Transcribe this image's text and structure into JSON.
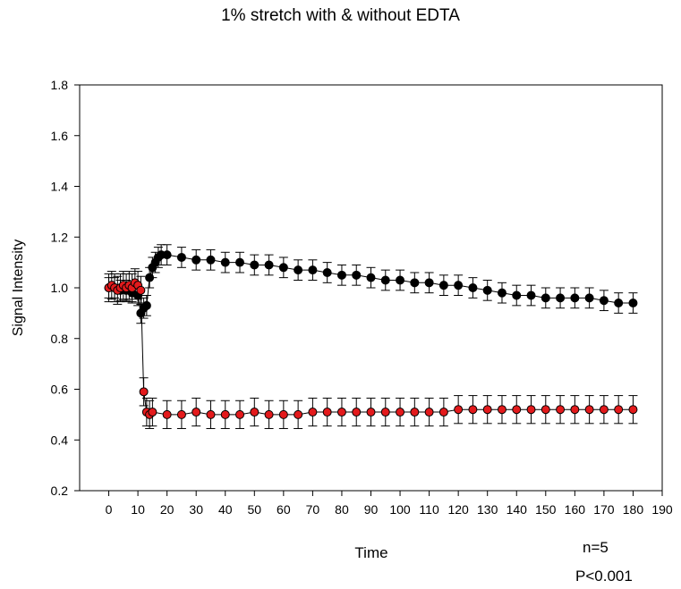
{
  "chart_data": {
    "type": "scatter",
    "title": "1% stretch with & without EDTA",
    "xlabel": "Time",
    "ylabel": "Signal Intensity",
    "xlim": [
      -10,
      190
    ],
    "ylim": [
      0.2,
      1.8
    ],
    "xticks": [
      "0",
      "10",
      "20",
      "30",
      "40",
      "50",
      "60",
      "70",
      "80",
      "90",
      "100",
      "110",
      "120",
      "130",
      "140",
      "150",
      "160",
      "170",
      "180",
      "190"
    ],
    "yticks": [
      "0.2",
      "0.4",
      "0.6",
      "0.8",
      "1.0",
      "1.2",
      "1.4",
      "1.6",
      "1.8"
    ],
    "grid": false,
    "annotations": [
      "n=5",
      "P<0.001"
    ],
    "series": [
      {
        "color": "#000000",
        "marker": "circle",
        "error_bar": 0.04,
        "points": [
          [
            0,
            1.0
          ],
          [
            2,
            1.0
          ],
          [
            4,
            0.99
          ],
          [
            6,
            0.99
          ],
          [
            8,
            0.98
          ],
          [
            10,
            0.97
          ],
          [
            11,
            0.9
          ],
          [
            12,
            0.92
          ],
          [
            13,
            0.93
          ],
          [
            14,
            1.04
          ],
          [
            15,
            1.08
          ],
          [
            16,
            1.1
          ],
          [
            17,
            1.12
          ],
          [
            18,
            1.13
          ],
          [
            20,
            1.13
          ],
          [
            25,
            1.12
          ],
          [
            30,
            1.11
          ],
          [
            35,
            1.11
          ],
          [
            40,
            1.1
          ],
          [
            45,
            1.1
          ],
          [
            50,
            1.09
          ],
          [
            55,
            1.09
          ],
          [
            60,
            1.08
          ],
          [
            65,
            1.07
          ],
          [
            70,
            1.07
          ],
          [
            75,
            1.06
          ],
          [
            80,
            1.05
          ],
          [
            85,
            1.05
          ],
          [
            90,
            1.04
          ],
          [
            95,
            1.03
          ],
          [
            100,
            1.03
          ],
          [
            105,
            1.02
          ],
          [
            110,
            1.02
          ],
          [
            115,
            1.01
          ],
          [
            120,
            1.01
          ],
          [
            125,
            1.0
          ],
          [
            130,
            0.99
          ],
          [
            135,
            0.98
          ],
          [
            140,
            0.97
          ],
          [
            145,
            0.97
          ],
          [
            150,
            0.96
          ],
          [
            155,
            0.96
          ],
          [
            160,
            0.96
          ],
          [
            165,
            0.96
          ],
          [
            170,
            0.95
          ],
          [
            175,
            0.94
          ],
          [
            180,
            0.94
          ]
        ]
      },
      {
        "color": "#e31a1c",
        "marker": "circle",
        "error_bar": 0.055,
        "points": [
          [
            0,
            1.0
          ],
          [
            1,
            1.01
          ],
          [
            2,
            1.0
          ],
          [
            3,
            0.99
          ],
          [
            4,
            1.0
          ],
          [
            5,
            1.01
          ],
          [
            6,
            1.0
          ],
          [
            7,
            1.01
          ],
          [
            8,
            1.0
          ],
          [
            9,
            1.02
          ],
          [
            10,
            1.01
          ],
          [
            11,
            0.99
          ],
          [
            12,
            0.59
          ],
          [
            13,
            0.51
          ],
          [
            14,
            0.5
          ],
          [
            15,
            0.51
          ],
          [
            20,
            0.5
          ],
          [
            25,
            0.5
          ],
          [
            30,
            0.51
          ],
          [
            35,
            0.5
          ],
          [
            40,
            0.5
          ],
          [
            45,
            0.5
          ],
          [
            50,
            0.51
          ],
          [
            55,
            0.5
          ],
          [
            60,
            0.5
          ],
          [
            65,
            0.5
          ],
          [
            70,
            0.51
          ],
          [
            75,
            0.51
          ],
          [
            80,
            0.51
          ],
          [
            85,
            0.51
          ],
          [
            90,
            0.51
          ],
          [
            95,
            0.51
          ],
          [
            100,
            0.51
          ],
          [
            105,
            0.51
          ],
          [
            110,
            0.51
          ],
          [
            115,
            0.51
          ],
          [
            120,
            0.52
          ],
          [
            125,
            0.52
          ],
          [
            130,
            0.52
          ],
          [
            135,
            0.52
          ],
          [
            140,
            0.52
          ],
          [
            145,
            0.52
          ],
          [
            150,
            0.52
          ],
          [
            155,
            0.52
          ],
          [
            160,
            0.52
          ],
          [
            165,
            0.52
          ],
          [
            170,
            0.52
          ],
          [
            175,
            0.52
          ],
          [
            180,
            0.52
          ]
        ]
      }
    ]
  }
}
